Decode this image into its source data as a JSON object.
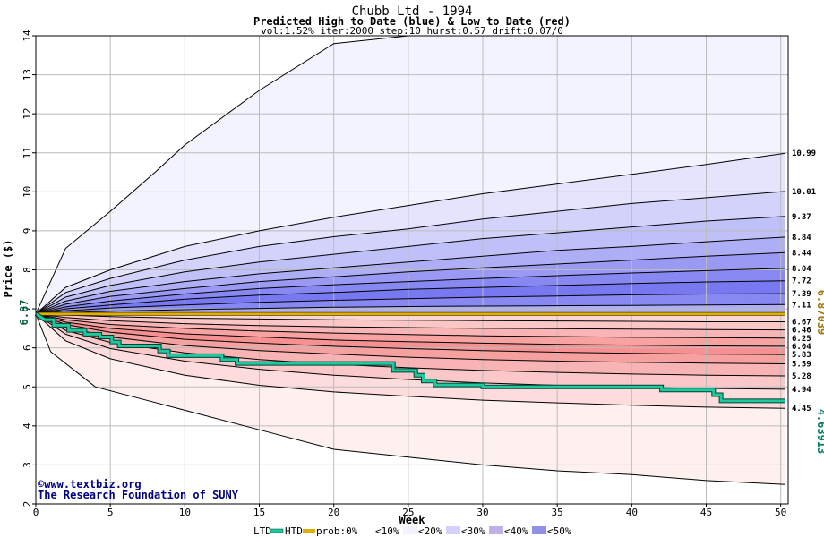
{
  "chart_data": {
    "type": "area",
    "title": "Chubb Ltd - 1994",
    "subtitle": "Predicted High to Date (blue) &  Low to Date (red)",
    "params": "vol:1.52% iter:2000 step:10 hurst:0.57 drift:0.07/0",
    "xlabel": "Week",
    "ylabel": "Price ($)",
    "xlim": [
      0,
      50.5
    ],
    "ylim": [
      2,
      14
    ],
    "xticks": [
      0,
      5,
      10,
      15,
      20,
      25,
      30,
      35,
      40,
      45,
      50
    ],
    "yticks": [
      2,
      3,
      4,
      5,
      6,
      7,
      8,
      9,
      10,
      11,
      12,
      13,
      14
    ],
    "grid": true,
    "start_price": 6.87,
    "start_label": "6.87",
    "htd_level": 6.87039,
    "htd_label": "6.87039",
    "ltd_label": "4.63913",
    "upper_labels": [
      "10.99",
      "10.01",
      "9.37",
      "8.84",
      "8.44",
      "8.04",
      "7.72",
      "7.39",
      "7.11"
    ],
    "lower_labels": [
      "6.67",
      "6.46",
      "6.25",
      "6.04",
      "5.83",
      "5.59",
      "5.28",
      "4.94",
      "4.45"
    ],
    "upper_curves": [
      {
        "x": [
          0,
          2,
          5,
          8,
          10,
          15,
          20,
          25,
          30,
          35,
          40,
          45,
          50.3
        ],
        "y": [
          6.87,
          8.55,
          9.5,
          10.5,
          11.2,
          12.6,
          13.8,
          14.0,
          14.0,
          14.0,
          14.0,
          14.0,
          14.0
        ]
      },
      {
        "x": [
          0,
          2,
          5,
          10,
          15,
          20,
          25,
          30,
          35,
          40,
          45,
          50.3
        ],
        "y": [
          6.87,
          7.55,
          8.0,
          8.6,
          9.0,
          9.35,
          9.65,
          9.95,
          10.2,
          10.45,
          10.7,
          10.99
        ]
      },
      {
        "x": [
          0,
          2,
          5,
          10,
          15,
          20,
          25,
          30,
          35,
          40,
          45,
          50.3
        ],
        "y": [
          6.87,
          7.42,
          7.78,
          8.25,
          8.6,
          8.85,
          9.05,
          9.3,
          9.5,
          9.7,
          9.85,
          10.01
        ]
      },
      {
        "x": [
          0,
          2,
          5,
          10,
          15,
          20,
          25,
          30,
          35,
          40,
          45,
          50.3
        ],
        "y": [
          6.87,
          7.3,
          7.6,
          7.95,
          8.2,
          8.4,
          8.6,
          8.8,
          8.95,
          9.1,
          9.25,
          9.37
        ]
      },
      {
        "x": [
          0,
          2,
          5,
          10,
          15,
          20,
          25,
          30,
          35,
          40,
          45,
          50.3
        ],
        "y": [
          6.87,
          7.2,
          7.45,
          7.7,
          7.9,
          8.05,
          8.2,
          8.35,
          8.5,
          8.6,
          8.72,
          8.84
        ]
      },
      {
        "x": [
          0,
          2,
          5,
          10,
          15,
          20,
          25,
          30,
          35,
          40,
          45,
          50.3
        ],
        "y": [
          6.87,
          7.12,
          7.32,
          7.52,
          7.7,
          7.82,
          7.95,
          8.05,
          8.15,
          8.25,
          8.35,
          8.44
        ]
      },
      {
        "x": [
          0,
          2,
          5,
          10,
          15,
          20,
          25,
          30,
          35,
          40,
          45,
          50.3
        ],
        "y": [
          6.87,
          7.05,
          7.2,
          7.38,
          7.52,
          7.62,
          7.7,
          7.78,
          7.85,
          7.92,
          7.98,
          8.04
        ]
      },
      {
        "x": [
          0,
          2,
          5,
          10,
          15,
          20,
          25,
          30,
          35,
          40,
          45,
          50.3
        ],
        "y": [
          6.87,
          7.0,
          7.1,
          7.25,
          7.35,
          7.42,
          7.5,
          7.55,
          7.6,
          7.65,
          7.69,
          7.72
        ]
      },
      {
        "x": [
          0,
          2,
          5,
          10,
          15,
          20,
          25,
          30,
          35,
          40,
          45,
          50.3
        ],
        "y": [
          6.87,
          6.95,
          7.02,
          7.1,
          7.17,
          7.22,
          7.26,
          7.3,
          7.33,
          7.36,
          7.38,
          7.39
        ]
      },
      {
        "x": [
          0,
          2,
          5,
          10,
          15,
          20,
          25,
          30,
          35,
          40,
          45,
          50.3
        ],
        "y": [
          6.87,
          6.9,
          6.94,
          6.98,
          7.01,
          7.04,
          7.06,
          7.07,
          7.08,
          7.09,
          7.1,
          7.11
        ]
      }
    ],
    "lower_curves": [
      {
        "x": [
          0,
          2,
          5,
          10,
          15,
          20,
          25,
          30,
          35,
          40,
          45,
          50.3
        ],
        "y": [
          6.87,
          6.84,
          6.8,
          6.76,
          6.74,
          6.72,
          6.71,
          6.7,
          6.69,
          6.68,
          6.67,
          6.67
        ]
      },
      {
        "x": [
          0,
          2,
          5,
          10,
          15,
          20,
          25,
          30,
          35,
          40,
          45,
          50.3
        ],
        "y": [
          6.87,
          6.78,
          6.7,
          6.62,
          6.57,
          6.54,
          6.52,
          6.5,
          6.49,
          6.48,
          6.47,
          6.46
        ]
      },
      {
        "x": [
          0,
          2,
          5,
          10,
          15,
          20,
          25,
          30,
          35,
          40,
          45,
          50.3
        ],
        "y": [
          6.87,
          6.72,
          6.6,
          6.5,
          6.43,
          6.38,
          6.34,
          6.31,
          6.29,
          6.27,
          6.26,
          6.25
        ]
      },
      {
        "x": [
          0,
          2,
          5,
          10,
          15,
          20,
          25,
          30,
          35,
          40,
          45,
          50.3
        ],
        "y": [
          6.87,
          6.66,
          6.5,
          6.36,
          6.28,
          6.2,
          6.16,
          6.12,
          6.09,
          6.07,
          6.05,
          6.04
        ]
      },
      {
        "x": [
          0,
          2,
          5,
          10,
          15,
          20,
          25,
          30,
          35,
          40,
          45,
          50.3
        ],
        "y": [
          6.87,
          6.6,
          6.4,
          6.22,
          6.12,
          6.04,
          5.98,
          5.93,
          5.89,
          5.86,
          5.84,
          5.83
        ]
      },
      {
        "x": [
          0,
          2,
          5,
          10,
          15,
          20,
          25,
          30,
          35,
          40,
          45,
          50.3
        ],
        "y": [
          6.87,
          6.53,
          6.28,
          6.06,
          5.93,
          5.84,
          5.76,
          5.7,
          5.66,
          5.63,
          5.61,
          5.59
        ]
      },
      {
        "x": [
          0,
          2,
          5,
          10,
          15,
          20,
          25,
          30,
          35,
          40,
          45,
          50.3
        ],
        "y": [
          6.87,
          6.45,
          6.14,
          5.87,
          5.7,
          5.58,
          5.49,
          5.42,
          5.37,
          5.33,
          5.3,
          5.28
        ]
      },
      {
        "x": [
          0,
          2,
          5,
          10,
          15,
          20,
          25,
          30,
          35,
          40,
          45,
          50.3
        ],
        "y": [
          6.87,
          6.35,
          5.98,
          5.66,
          5.45,
          5.3,
          5.19,
          5.1,
          5.04,
          4.99,
          4.96,
          4.94
        ]
      },
      {
        "x": [
          0,
          2,
          5,
          10,
          15,
          20,
          25,
          30,
          35,
          40,
          45,
          50.3
        ],
        "y": [
          6.87,
          6.18,
          5.72,
          5.3,
          5.04,
          4.87,
          4.76,
          4.66,
          4.59,
          4.53,
          4.48,
          4.45
        ]
      },
      {
        "x": [
          0,
          1,
          3,
          4,
          7,
          10,
          15,
          20,
          25,
          30,
          35,
          40,
          45,
          50.3
        ],
        "y": [
          6.87,
          5.9,
          5.3,
          5.0,
          4.7,
          4.4,
          3.9,
          3.4,
          3.2,
          3.0,
          2.85,
          2.75,
          2.6,
          2.5
        ]
      }
    ],
    "ltd_path": {
      "x": [
        0,
        0.6,
        1.2,
        1.2,
        2.2,
        2.2,
        3.3,
        3.3,
        4.3,
        4.3,
        5.1,
        5.1,
        5.6,
        5.6,
        8.3,
        8.3,
        8.9,
        8.9,
        12.5,
        12.5,
        13.5,
        13.5,
        24.0,
        24.0,
        25.5,
        25.5,
        26.0,
        26.0,
        26.8,
        26.8,
        30.0,
        30.0,
        42.0,
        42.0,
        45.5,
        45.5,
        46.0,
        46.0,
        50.3
      ],
      "y": [
        6.87,
        6.72,
        6.72,
        6.58,
        6.58,
        6.45,
        6.45,
        6.35,
        6.35,
        6.28,
        6.28,
        6.15,
        6.15,
        6.05,
        6.05,
        5.92,
        5.92,
        5.8,
        5.8,
        5.7,
        5.7,
        5.6,
        5.6,
        5.42,
        5.42,
        5.3,
        5.3,
        5.15,
        5.15,
        5.05,
        5.05,
        5.0,
        5.0,
        4.92,
        4.92,
        4.8,
        4.8,
        4.64,
        4.64
      ]
    },
    "legend": {
      "ltd": "LTD",
      "htd": "HTD",
      "prob": "prob:0%",
      "bins": [
        "<10%",
        "<20%",
        "<30%",
        "<40%",
        "<50%"
      ]
    },
    "watermark": [
      "©www.textbiz.org",
      "The Research Foundation of SUNY"
    ],
    "colors": {
      "upper_bands": [
        "#f3f3ff",
        "#e4e4fc",
        "#d2d2fa",
        "#c0c0f8",
        "#aeaef6",
        "#9a9af4",
        "#8888f2",
        "#7878f0",
        "#8888f2",
        "#aeaef6"
      ],
      "lower_bands": [
        "#fbd6d6",
        "#fac6c6",
        "#f9b5b5",
        "#f8a2a2",
        "#f79191",
        "#f6a0a0",
        "#f8b4b4",
        "#fac8c8",
        "#fcdcdc",
        "#fdf0ef"
      ],
      "curve": "#000000",
      "htd": "#e0b000",
      "ltd": "#20c8a0",
      "ltd_outline": "#004030",
      "axis": "#000000",
      "grid": "#bbbbbb",
      "start_label": "#006040",
      "htd_label": "#a07800",
      "ltd_label": "#008060",
      "watermark": "#000080"
    }
  }
}
